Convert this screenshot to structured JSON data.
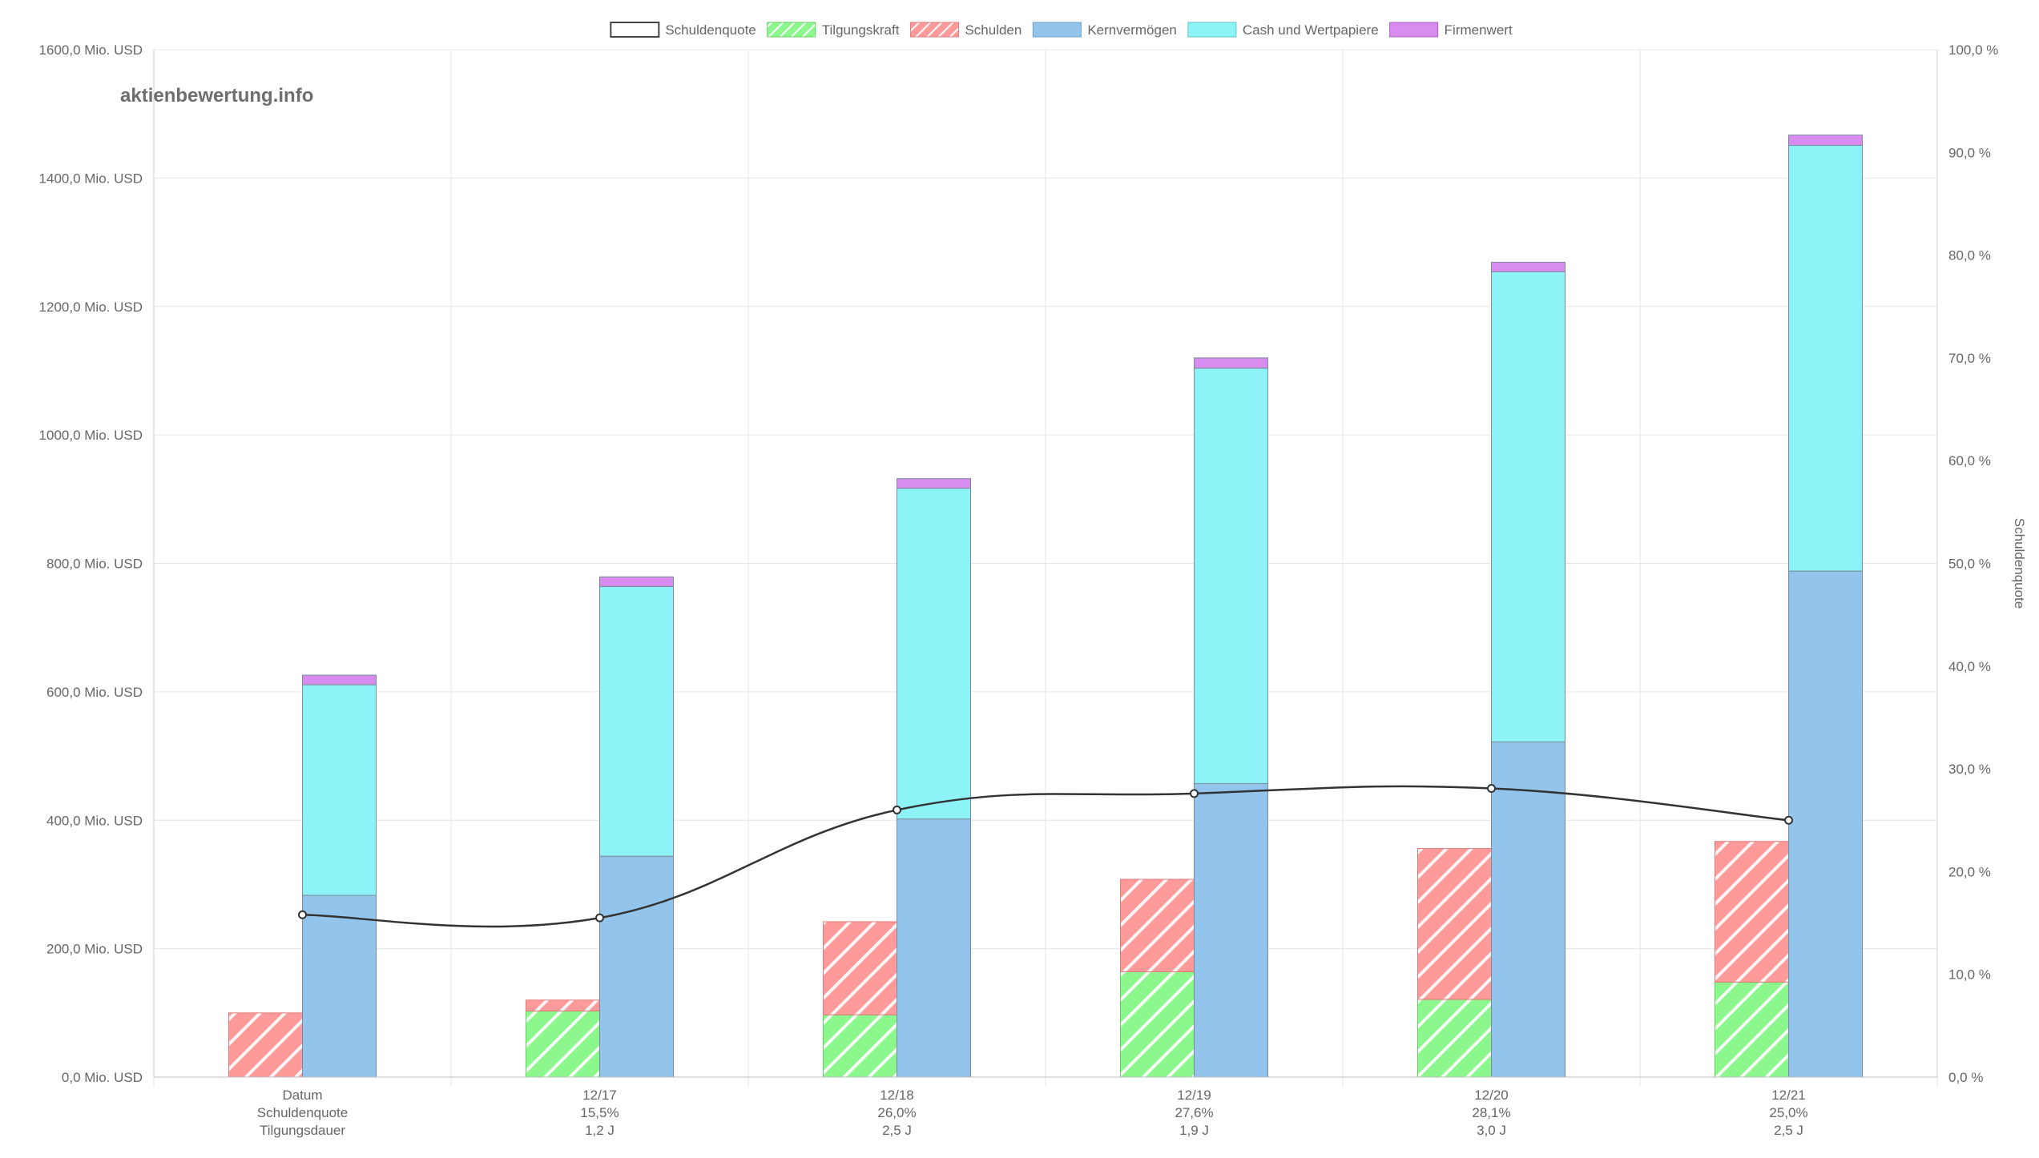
{
  "watermark": "aktienbewertung.info",
  "chart_data": {
    "type": "bar",
    "categories": [
      "Datum",
      "12/17",
      "12/18",
      "12/19",
      "12/20",
      "12/21"
    ],
    "category_sublines": [
      [
        "Schuldenquote",
        "Tilgungsdauer"
      ],
      [
        "15,5%",
        "1,2 J"
      ],
      [
        "26,0%",
        "2,5 J"
      ],
      [
        "27,6%",
        "1,9 J"
      ],
      [
        "28,1%",
        "3,0 J"
      ],
      [
        "25,0%",
        "2,5 J"
      ]
    ],
    "stack_left": {
      "tilgungskraft": [
        0,
        103,
        97,
        164,
        121,
        148
      ],
      "schulden": [
        100,
        120,
        242,
        308,
        356,
        367
      ]
    },
    "stack_right": {
      "kernvermoegen": [
        283,
        344,
        402,
        457,
        522,
        788
      ],
      "cash": [
        611,
        764,
        917,
        1104,
        1254,
        1451
      ],
      "firmenwert": [
        626,
        779,
        932,
        1120,
        1269,
        1467
      ]
    },
    "line_series": {
      "name": "Schuldenquote",
      "values": [
        15.8,
        15.5,
        26.0,
        27.6,
        28.1,
        25.0
      ]
    },
    "legend": [
      {
        "label": "Schuldenquote",
        "color": "#ffffff",
        "border": "#444444",
        "pattern": false
      },
      {
        "label": "Tilgungskraft",
        "color": "#8cf78c",
        "border": "#5fd25f",
        "pattern": true
      },
      {
        "label": "Schulden",
        "color": "#ff9a9a",
        "border": "#e07a7a",
        "pattern": true
      },
      {
        "label": "Kernvermögen",
        "color": "#93c5ec",
        "border": "#6b9fc9",
        "pattern": false
      },
      {
        "label": "Cash und Wertpapiere",
        "color": "#8df3f6",
        "border": "#59c6cc",
        "pattern": false
      },
      {
        "label": "Firmenwert",
        "color": "#d98cf0",
        "border": "#a860c2",
        "pattern": false
      }
    ],
    "y_left": {
      "min": 0,
      "max": 1600,
      "step": 200,
      "ticks": [
        "0,0 Mio. USD",
        "200,0 Mio. USD",
        "400,0 Mio. USD",
        "600,0 Mio. USD",
        "800,0 Mio. USD",
        "1000,0 Mio. USD",
        "1200,0 Mio. USD",
        "1400,0 Mio. USD",
        "1600,0 Mio. USD"
      ]
    },
    "y_right": {
      "min": 0,
      "max": 100,
      "step": 10,
      "ticks": [
        "0,0 %",
        "10,0 %",
        "20,0 %",
        "30,0 %",
        "40,0 %",
        "50,0 %",
        "60,0 %",
        "70,0 %",
        "80,0 %",
        "90,0 %",
        "100,0 %"
      ],
      "label": "Schuldenquote"
    },
    "grid": true,
    "legend_position": "top"
  }
}
